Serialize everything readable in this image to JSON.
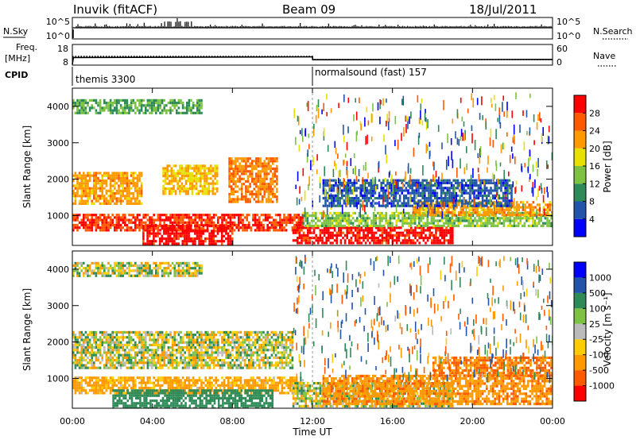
{
  "header": {
    "station": "Inuvik (fitACF)",
    "beam": "Beam 09",
    "date": "18/Jul/2011"
  },
  "nsky_panel": {
    "left_label": "N.Sky",
    "left_ticks": [
      "10^5",
      "10^0"
    ],
    "right_ticks": [
      "10^5",
      "10^0"
    ],
    "right_label": "N.Search"
  },
  "freq_panel": {
    "left_label_line1": "Freq.",
    "left_label_line2": "[MHz]",
    "left_ticks": [
      "18",
      "8"
    ],
    "right_ticks": [
      "60",
      "0"
    ],
    "right_label": "Nave"
  },
  "cpid_panel": {
    "label": "CPID",
    "segments": [
      {
        "name": "themis 3300",
        "start_hour": 0,
        "end_hour": 12
      },
      {
        "name": "normalsound (fast) 157",
        "start_hour": 12,
        "end_hour": 24
      }
    ]
  },
  "time_axis": {
    "label": "Time UT",
    "ticks": [
      "00:00",
      "04:00",
      "08:00",
      "12:00",
      "16:00",
      "20:00",
      "00:00"
    ],
    "range_hours": [
      0,
      24
    ]
  },
  "range_axis": {
    "label": "Slant Range [km]",
    "ticks": [
      "1000",
      "2000",
      "3000",
      "4000"
    ],
    "range_km": [
      180,
      4500
    ]
  },
  "power_colorbar": {
    "label": "Power [dB]",
    "ticks": [
      "4",
      "8",
      "12",
      "16",
      "20",
      "24",
      "28"
    ],
    "colors": [
      "#0000ff",
      "#2255aa",
      "#2e8b57",
      "#7dc242",
      "#e8e000",
      "#ff9900",
      "#ff5a00",
      "#ff0000"
    ]
  },
  "velocity_colorbar": {
    "label": "Velocity [m s⁻¹]",
    "ticks": [
      "1000",
      "500",
      "100",
      "25",
      "-25",
      "-100",
      "-500",
      "-1000"
    ],
    "colors": [
      "#0000ff",
      "#2255aa",
      "#2e8b57",
      "#7dc242",
      "#bbbbbb",
      "#ffcc00",
      "#ff9900",
      "#ff5a00",
      "#ff0000"
    ]
  },
  "chart_data": [
    {
      "type": "line",
      "panel": "N.Sky / N.Search",
      "x_unit": "hours UT",
      "xlim": [
        0,
        24
      ],
      "scale": "log",
      "ylim": [
        "10^0",
        "10^5"
      ],
      "note_series_style": {
        "N.Sky": "solid",
        "N.Search": "dotted"
      }
    },
    {
      "type": "line",
      "panel": "Freq. / Nave",
      "x_unit": "hours UT",
      "xlim": [
        0,
        24
      ],
      "series": [
        {
          "name": "Freq.",
          "ylim": [
            8,
            18
          ],
          "points": [
            [
              0,
              8
            ],
            [
              0.05,
              11.6
            ],
            [
              12,
              11.9
            ],
            [
              12.01,
              10.4
            ],
            [
              24,
              10.6
            ]
          ]
        },
        {
          "name": "Nave",
          "ylim": [
            0,
            60
          ],
          "points": [
            [
              0,
              30
            ],
            [
              12,
              30
            ],
            [
              12.01,
              20
            ],
            [
              24,
              20
            ]
          ]
        }
      ]
    },
    {
      "type": "heatmap",
      "panel": "Power",
      "x_unit": "hours UT",
      "xlim": [
        0,
        24
      ],
      "ylim": [
        180,
        4500
      ],
      "zlim": [
        0,
        32
      ],
      "regions": [
        {
          "t0": 0.0,
          "t1": 11.5,
          "r0": 600,
          "r1": 1050,
          "z": 28
        },
        {
          "t0": 0.0,
          "t1": 3.5,
          "r0": 1350,
          "r1": 2200,
          "z": 22
        },
        {
          "t0": 3.5,
          "t1": 8.0,
          "r0": 250,
          "r1": 750,
          "z": 30
        },
        {
          "t0": 4.5,
          "t1": 7.2,
          "r0": 1600,
          "r1": 2400,
          "z": 20
        },
        {
          "t0": 7.8,
          "t1": 10.2,
          "r0": 1400,
          "r1": 2600,
          "z": 24
        },
        {
          "t0": 11.0,
          "t1": 19.0,
          "r0": 250,
          "r1": 700,
          "z": 30
        },
        {
          "t0": 11.5,
          "t1": 24.0,
          "r0": 700,
          "r1": 1100,
          "z": 14
        },
        {
          "t0": 17.0,
          "t1": 24.0,
          "r0": 1000,
          "r1": 1400,
          "z": 22
        },
        {
          "t0": 12.5,
          "t1": 22.0,
          "r0": 1300,
          "r1": 2000,
          "z": 6
        },
        {
          "t0": 0.0,
          "t1": 6.5,
          "r0": 3800,
          "r1": 4200,
          "z": 12
        }
      ]
    },
    {
      "type": "heatmap",
      "panel": "Velocity",
      "x_unit": "hours UT",
      "xlim": [
        0,
        24
      ],
      "ylim": [
        180,
        4500
      ],
      "zlim": [
        -1000,
        1000
      ],
      "regions": [
        {
          "t0": 0.0,
          "t1": 11.5,
          "r0": 600,
          "r1": 1050,
          "z": -200
        },
        {
          "t0": 0.0,
          "t1": 11.0,
          "r0": 1300,
          "r1": 2300,
          "z": 0
        },
        {
          "t0": 2.0,
          "t1": 10.0,
          "r0": 200,
          "r1": 700,
          "z": 300
        },
        {
          "t0": 11.0,
          "t1": 19.0,
          "r0": 250,
          "r1": 900,
          "z": 0
        },
        {
          "t0": 12.5,
          "t1": 24.0,
          "r0": 300,
          "r1": 1100,
          "z": -400
        },
        {
          "t0": 18.0,
          "t1": 24.0,
          "r0": 1100,
          "r1": 1600,
          "z": -500
        },
        {
          "t0": 0.0,
          "t1": 6.5,
          "r0": 3800,
          "r1": 4200,
          "z": 0
        }
      ]
    }
  ]
}
